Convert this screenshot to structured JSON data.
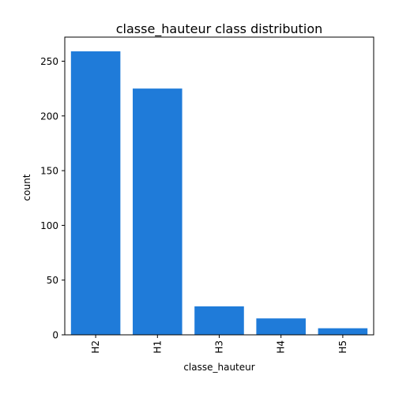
{
  "chart_data": {
    "type": "bar",
    "title": "classe_hauteur class distribution",
    "xlabel": "classe_hauteur",
    "ylabel": "count",
    "categories": [
      "H2",
      "H1",
      "H3",
      "H4",
      "H5"
    ],
    "values": [
      259,
      225,
      26,
      15,
      6
    ],
    "ylim": [
      0,
      272
    ],
    "yticks": [
      "0",
      "50",
      "100",
      "150",
      "200",
      "250"
    ],
    "bar_color": "#1f7bd9",
    "grid": false,
    "legend": "none"
  }
}
